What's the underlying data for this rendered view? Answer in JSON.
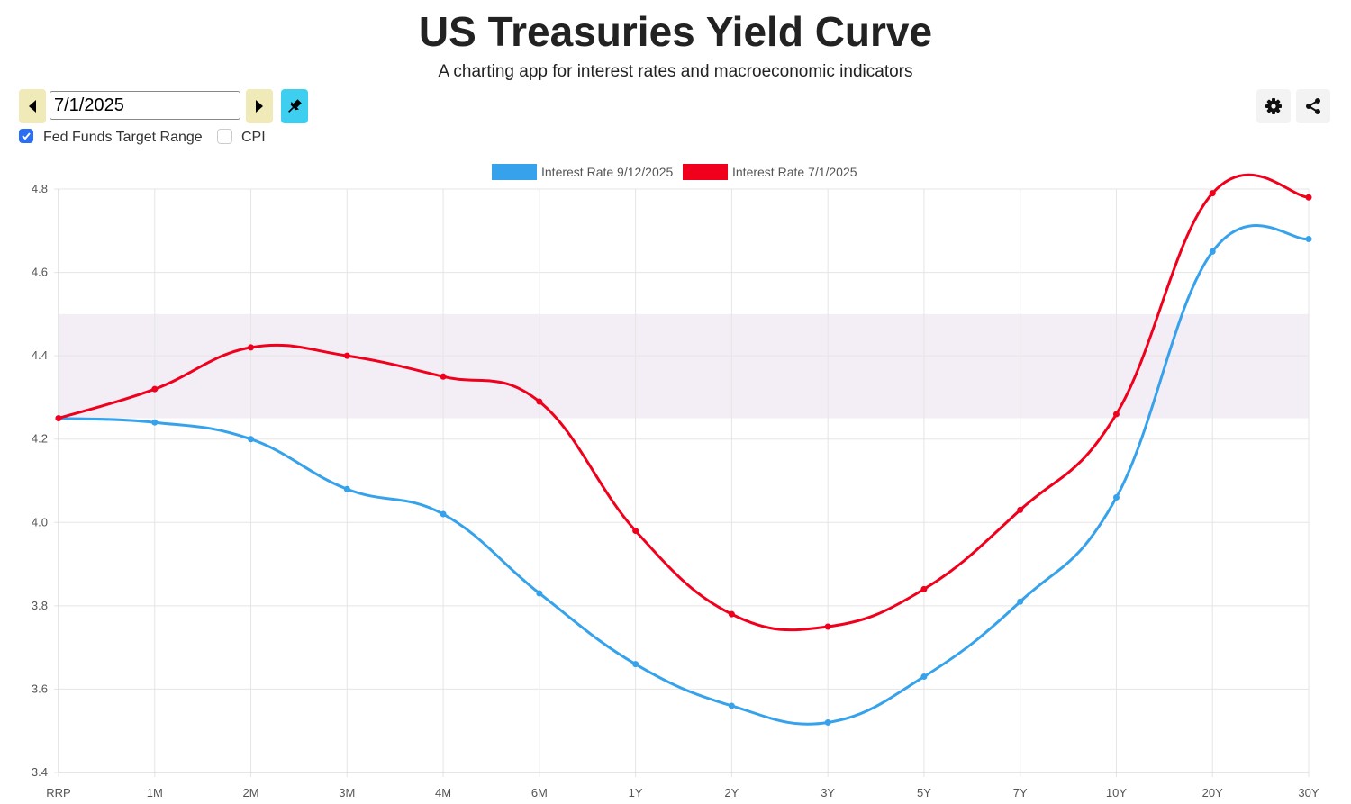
{
  "header": {
    "title": "US Treasuries Yield Curve",
    "subtitle": "A charting app for interest rates and macroeconomic indicators"
  },
  "controls": {
    "date_value": "7/1/2025",
    "prev_icon": "caret-left-icon",
    "next_icon": "caret-right-icon",
    "pin_icon": "pin-icon",
    "fed_funds_label": "Fed Funds Target Range",
    "fed_funds_checked": true,
    "cpi_label": "CPI",
    "cpi_checked": false,
    "settings_icon": "gear-icon",
    "share_icon": "share-icon"
  },
  "colors": {
    "blue": "#36a2eb",
    "red": "#f0001c",
    "band": "#f3eef5",
    "nav_button": "#efeab7",
    "pin_button": "#3ecff0",
    "checkbox": "#2a6ef5"
  },
  "chart_data": {
    "type": "line",
    "categories": [
      "RRP",
      "1M",
      "2M",
      "3M",
      "4M",
      "6M",
      "1Y",
      "2Y",
      "3Y",
      "5Y",
      "7Y",
      "10Y",
      "20Y",
      "30Y"
    ],
    "ylim": [
      3.4,
      4.8
    ],
    "yticks": [
      "3.4",
      "3.6",
      "3.8",
      "4.0",
      "4.2",
      "4.4",
      "4.6",
      "4.8"
    ],
    "grid": true,
    "legend_position": "top",
    "band": {
      "label": "Fed Funds Target Range",
      "low": 4.25,
      "high": 4.5
    },
    "series": [
      {
        "name": "Interest Rate 9/12/2025",
        "color": "#36a2eb",
        "values": [
          4.25,
          4.24,
          4.2,
          4.08,
          4.02,
          3.83,
          3.66,
          3.56,
          3.52,
          3.63,
          3.81,
          4.06,
          4.65,
          4.68
        ]
      },
      {
        "name": "Interest Rate 7/1/2025",
        "color": "#f0001c",
        "values": [
          4.25,
          4.32,
          4.42,
          4.4,
          4.35,
          4.29,
          3.98,
          3.78,
          3.75,
          3.84,
          4.03,
          4.26,
          4.79,
          4.78
        ]
      }
    ]
  }
}
